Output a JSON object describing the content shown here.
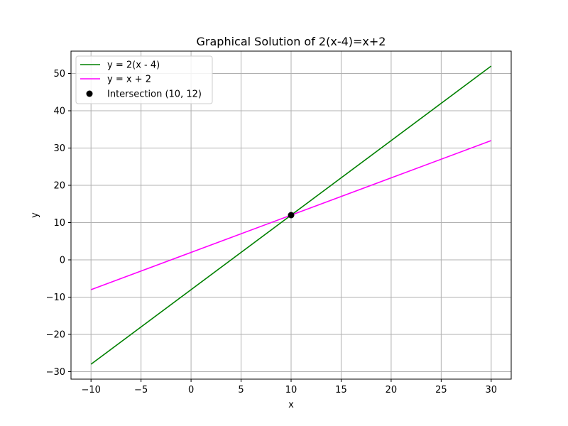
{
  "chart_data": {
    "type": "line",
    "title": "Graphical Solution of 2(x-4)=x+2",
    "xlabel": "x",
    "ylabel": "y",
    "xlim": [
      -12,
      32
    ],
    "ylim": [
      -32,
      56
    ],
    "xticks": [
      -10,
      -5,
      0,
      5,
      10,
      15,
      20,
      25,
      30
    ],
    "yticks": [
      -30,
      -20,
      -10,
      0,
      10,
      20,
      30,
      40,
      50
    ],
    "xtick_labels": [
      "−10",
      "−5",
      "0",
      "5",
      "10",
      "15",
      "20",
      "25",
      "30"
    ],
    "ytick_labels": [
      "−30",
      "−20",
      "−10",
      "0",
      "10",
      "20",
      "30",
      "40",
      "50"
    ],
    "grid": true,
    "legend_position": "top-left",
    "series": [
      {
        "name": "y = 2(x - 4)",
        "color": "#008000",
        "x": [
          -10,
          30
        ],
        "y": [
          -28,
          52
        ]
      },
      {
        "name": "y = x + 2",
        "color": "#ff00ff",
        "x": [
          -10,
          30
        ],
        "y": [
          -8,
          32
        ]
      }
    ],
    "points": [
      {
        "name": "Intersection (10, 12)",
        "color": "#000000",
        "x": 10,
        "y": 12
      }
    ]
  }
}
